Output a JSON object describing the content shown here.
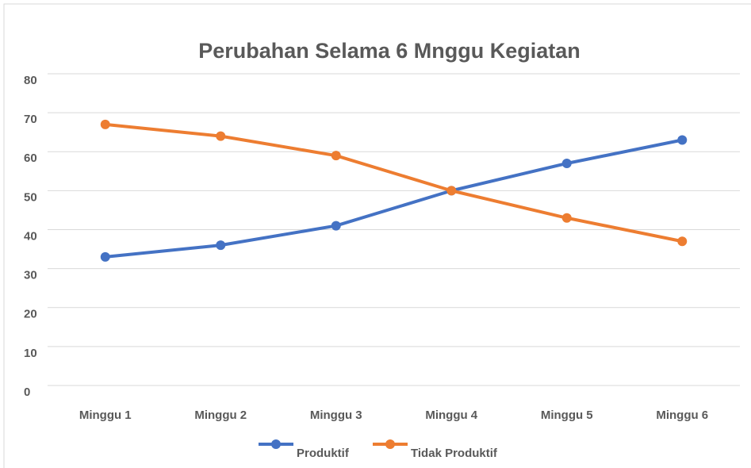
{
  "chart_data": {
    "type": "line",
    "title": "Perubahan Selama 6 Mnggu Kegiatan",
    "categories": [
      "Minggu 1",
      "Minggu 2",
      "Minggu 3",
      "Minggu 4",
      "Minggu 5",
      "Minggu 6"
    ],
    "series": [
      {
        "name": "Produktif",
        "color": "#4472c4",
        "values": [
          33,
          36,
          41,
          50,
          57,
          63
        ]
      },
      {
        "name": "Tidak Produktif",
        "color": "#ed7d31",
        "values": [
          67,
          64,
          59,
          50,
          43,
          37
        ]
      }
    ],
    "ylim": [
      0,
      80
    ],
    "yticks": [
      0,
      10,
      20,
      30,
      40,
      50,
      60,
      70,
      80
    ],
    "grid": true,
    "legend": "bottom"
  }
}
